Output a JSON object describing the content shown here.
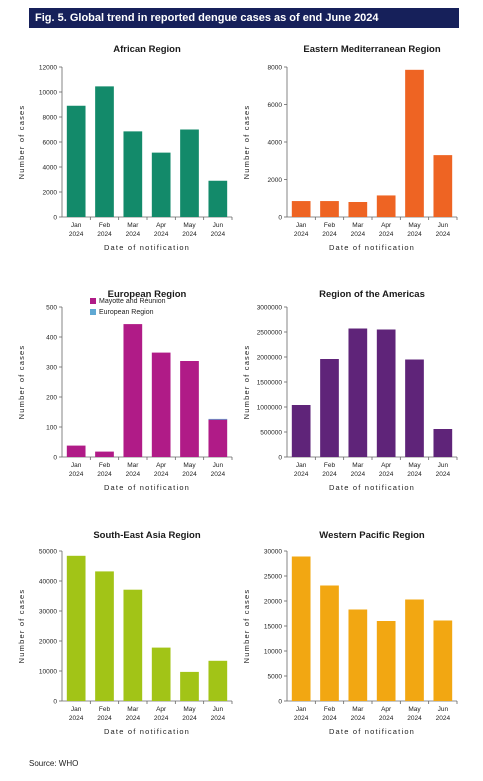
{
  "figure": {
    "title": "Fig. 5. Global trend in reported dengue cases as of end June 2024",
    "source": "Source: WHO"
  },
  "chart_data": [
    {
      "type": "bar",
      "title": "African Region",
      "xlabel": "Date of notification",
      "ylabel": "Number of cases",
      "categories": [
        "Jan 2024",
        "Feb 2024",
        "Mar 2024",
        "Apr 2024",
        "May 2024",
        "Jun 2024"
      ],
      "values": [
        8900,
        10450,
        6850,
        5150,
        7000,
        2900
      ],
      "ylim": [
        0,
        12000
      ],
      "yticks": [
        0,
        2000,
        4000,
        6000,
        8000,
        10000,
        12000
      ],
      "color": "#138a6a",
      "grid": false
    },
    {
      "type": "bar",
      "title": "Eastern Mediterranean Region",
      "xlabel": "Date of notification",
      "ylabel": "Number of cases",
      "categories": [
        "Jan 2024",
        "Feb 2024",
        "Mar 2024",
        "Apr 2024",
        "May 2024",
        "Jun 2024"
      ],
      "values": [
        850,
        850,
        800,
        1150,
        7850,
        3300
      ],
      "ylim": [
        0,
        8000
      ],
      "yticks": [
        0,
        2000,
        4000,
        6000,
        8000
      ],
      "color": "#ee6423",
      "grid": false
    },
    {
      "type": "bar",
      "title": "European Region",
      "xlabel": "Date of notification",
      "ylabel": "Number of cases",
      "categories": [
        "Jan 2024",
        "Feb 2024",
        "Mar 2024",
        "Apr 2024",
        "May 2024",
        "Jun 2024"
      ],
      "series": [
        {
          "name": "Mayotte and Réunion",
          "values": [
            38,
            18,
            443,
            348,
            320,
            125
          ],
          "color": "#b01b87"
        },
        {
          "name": "European Region",
          "values": [
            0,
            0,
            0,
            0,
            0,
            2
          ],
          "color": "#5fa8d3"
        }
      ],
      "legend": "top-left",
      "ylim": [
        0,
        500
      ],
      "yticks": [
        0,
        100,
        200,
        300,
        400,
        500
      ],
      "grid": false
    },
    {
      "type": "bar",
      "title": "Region of the Americas",
      "xlabel": "Date of notification",
      "ylabel": "Number of cases",
      "categories": [
        "Jan 2024",
        "Feb 2024",
        "Mar 2024",
        "Apr 2024",
        "May 2024",
        "Jun 2024"
      ],
      "values": [
        1040000,
        1960000,
        2570000,
        2550000,
        1950000,
        560000
      ],
      "ylim": [
        0,
        3000000
      ],
      "yticks": [
        0,
        500000,
        1000000,
        1500000,
        2000000,
        2500000,
        3000000
      ],
      "color": "#5f2479",
      "grid": false
    },
    {
      "type": "bar",
      "title": "South-East Asia Region",
      "xlabel": "Date of notification",
      "ylabel": "Number of cases",
      "categories": [
        "Jan 2024",
        "Feb 2024",
        "Mar 2024",
        "Apr 2024",
        "May 2024",
        "Jun 2024"
      ],
      "values": [
        48400,
        43200,
        37100,
        17800,
        9700,
        13400
      ],
      "ylim": [
        0,
        50000
      ],
      "yticks": [
        0,
        10000,
        20000,
        30000,
        40000,
        50000
      ],
      "color": "#a2c417",
      "grid": false
    },
    {
      "type": "bar",
      "title": "Western Pacific Region",
      "xlabel": "Date of notification",
      "ylabel": "Number of cases",
      "categories": [
        "Jan 2024",
        "Feb 2024",
        "Mar 2024",
        "Apr 2024",
        "May 2024",
        "Jun 2024"
      ],
      "values": [
        28900,
        23100,
        18300,
        16000,
        20300,
        16100
      ],
      "ylim": [
        0,
        30000
      ],
      "yticks": [
        0,
        5000,
        10000,
        15000,
        20000,
        25000,
        30000
      ],
      "color": "#f2a712",
      "grid": false
    }
  ]
}
